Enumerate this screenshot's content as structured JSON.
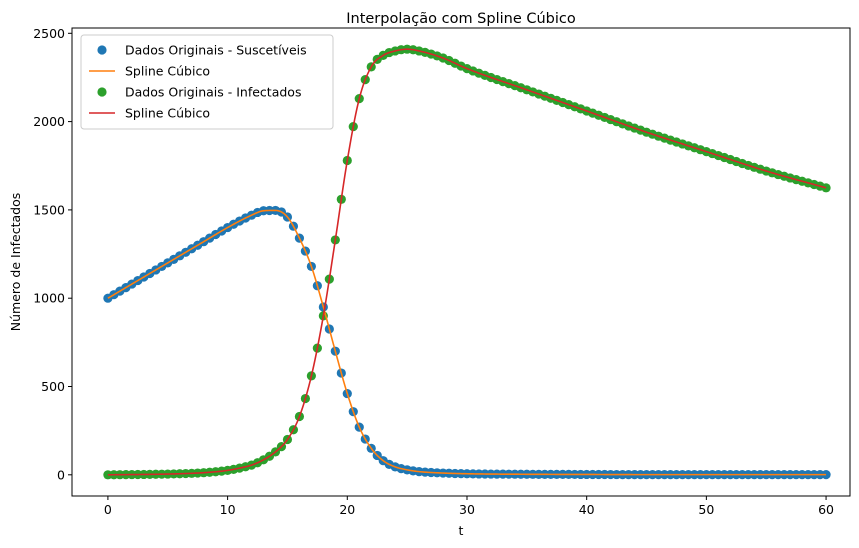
{
  "chart_data": {
    "type": "line",
    "title": "Interpolação com Spline Cúbico",
    "xlabel": "t",
    "ylabel": "Número de Infectados",
    "xlim": [
      -3,
      62
    ],
    "ylim": [
      -120,
      2530
    ],
    "xticks": [
      0,
      10,
      20,
      30,
      40,
      50,
      60
    ],
    "yticks": [
      0,
      500,
      1000,
      1500,
      2000,
      2500
    ],
    "legend_position": "top-left",
    "grid": false,
    "series": [
      {
        "name": "Dados Originais - Suscetíveis",
        "kind": "markers",
        "color": "#1f77b4",
        "points": [
          [
            0,
            1000
          ],
          [
            2,
            1080
          ],
          [
            4,
            1160
          ],
          [
            6,
            1240
          ],
          [
            8,
            1320
          ],
          [
            10,
            1400
          ],
          [
            12,
            1470
          ],
          [
            13,
            1495
          ],
          [
            14,
            1497
          ],
          [
            15,
            1460
          ],
          [
            16,
            1340
          ],
          [
            17,
            1180
          ],
          [
            18,
            950
          ],
          [
            19,
            700
          ],
          [
            20,
            460
          ],
          [
            21,
            270
          ],
          [
            22,
            150
          ],
          [
            23,
            80
          ],
          [
            24,
            45
          ],
          [
            25,
            28
          ],
          [
            26,
            18
          ],
          [
            28,
            10
          ],
          [
            30,
            6
          ],
          [
            35,
            3
          ],
          [
            40,
            2
          ],
          [
            45,
            1
          ],
          [
            50,
            1
          ],
          [
            55,
            1
          ],
          [
            60,
            1
          ]
        ]
      },
      {
        "name": "Spline Cúbico",
        "kind": "line",
        "color": "#ff7f0e",
        "series_ref": "Dados Originais - Suscetíveis"
      },
      {
        "name": "Dados Originais - Infectados",
        "kind": "markers",
        "color": "#2ca02c",
        "points": [
          [
            0,
            0
          ],
          [
            4,
            3
          ],
          [
            6,
            6
          ],
          [
            8,
            12
          ],
          [
            10,
            25
          ],
          [
            11,
            38
          ],
          [
            12,
            55
          ],
          [
            13,
            85
          ],
          [
            14,
            130
          ],
          [
            15,
            200
          ],
          [
            16,
            330
          ],
          [
            17,
            560
          ],
          [
            18,
            900
          ],
          [
            19,
            1330
          ],
          [
            20,
            1780
          ],
          [
            21,
            2130
          ],
          [
            22,
            2310
          ],
          [
            23,
            2375
          ],
          [
            24,
            2400
          ],
          [
            25,
            2410
          ],
          [
            26,
            2400
          ],
          [
            28,
            2360
          ],
          [
            30,
            2300
          ],
          [
            35,
            2180
          ],
          [
            40,
            2060
          ],
          [
            45,
            1940
          ],
          [
            50,
            1830
          ],
          [
            55,
            1720
          ],
          [
            60,
            1625
          ]
        ]
      },
      {
        "name": "Spline Cúbico",
        "kind": "line",
        "color": "#d62728",
        "series_ref": "Dados Originais - Infectados"
      }
    ]
  }
}
